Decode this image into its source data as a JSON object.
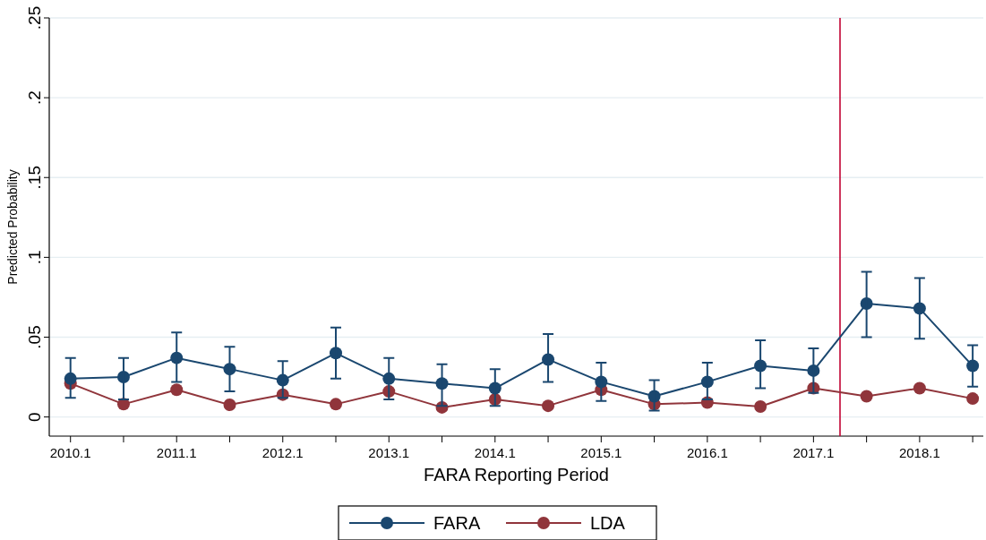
{
  "chart_data": {
    "type": "line",
    "xlabel": "FARA Reporting Period",
    "ylabel": "Predicted Probability",
    "x": [
      2010.1,
      2010.6,
      2011.1,
      2011.6,
      2012.1,
      2012.6,
      2013.1,
      2013.6,
      2014.1,
      2014.6,
      2015.1,
      2015.6,
      2016.1,
      2016.6,
      2017.1,
      2017.6,
      2018.1,
      2018.6
    ],
    "series": [
      {
        "name": "FARA",
        "color": "#1a476f",
        "values": [
          0.024,
          0.025,
          0.037,
          0.03,
          0.023,
          0.04,
          0.024,
          0.021,
          0.018,
          0.036,
          0.022,
          0.013,
          0.022,
          0.032,
          0.029,
          0.071,
          0.068,
          0.032
        ],
        "errors": [
          [
            0.012,
            0.037
          ],
          [
            0.011,
            0.037
          ],
          [
            0.022,
            0.053
          ],
          [
            0.016,
            0.044
          ],
          [
            0.012,
            0.035
          ],
          [
            0.024,
            0.056
          ],
          [
            0.011,
            0.037
          ],
          [
            0.007,
            0.033
          ],
          [
            0.007,
            0.03
          ],
          [
            0.022,
            0.052
          ],
          [
            0.01,
            0.034
          ],
          [
            0.004,
            0.023
          ],
          [
            0.011,
            0.034
          ],
          [
            0.018,
            0.048
          ],
          [
            0.015,
            0.043
          ],
          [
            0.05,
            0.091
          ],
          [
            0.049,
            0.087
          ],
          [
            0.019,
            0.045
          ]
        ]
      },
      {
        "name": "LDA",
        "color": "#90353b",
        "values": [
          0.021,
          0.008,
          0.017,
          0.0076,
          0.014,
          0.008,
          0.016,
          0.006,
          0.011,
          0.007,
          0.017,
          0.008,
          0.009,
          0.0065,
          0.018,
          0.013,
          0.018,
          0.0115
        ]
      }
    ],
    "xlim": [
      2009.9,
      2018.7
    ],
    "xticks": [
      {
        "value": 2010.1,
        "label": "2010.1"
      },
      {
        "value": 2010.6,
        "label": null
      },
      {
        "value": 2011.1,
        "label": "2011.1"
      },
      {
        "value": 2011.6,
        "label": null
      },
      {
        "value": 2012.1,
        "label": "2012.1"
      },
      {
        "value": 2012.6,
        "label": null
      },
      {
        "value": 2013.1,
        "label": "2013.1"
      },
      {
        "value": 2013.6,
        "label": null
      },
      {
        "value": 2014.1,
        "label": "2014.1"
      },
      {
        "value": 2014.6,
        "label": null
      },
      {
        "value": 2015.1,
        "label": "2015.1"
      },
      {
        "value": 2015.6,
        "label": null
      },
      {
        "value": 2016.1,
        "label": "2016.1"
      },
      {
        "value": 2016.6,
        "label": null
      },
      {
        "value": 2017.1,
        "label": "2017.1"
      },
      {
        "value": 2017.6,
        "label": null
      },
      {
        "value": 2018.1,
        "label": "2018.1"
      },
      {
        "value": 2018.6,
        "label": null
      }
    ],
    "ylim": [
      -0.012,
      0.25
    ],
    "yticks": [
      {
        "value": 0,
        "label": "0"
      },
      {
        "value": 0.05,
        "label": ".05"
      },
      {
        "value": 0.1,
        "label": ".1"
      },
      {
        "value": 0.15,
        "label": ".15"
      },
      {
        "value": 0.2,
        "label": ".2"
      },
      {
        "value": 0.25,
        "label": ".25"
      }
    ],
    "ref_lines": [
      {
        "axis": "x",
        "value": 2017.35,
        "color": "#c10534"
      }
    ],
    "grid": "y",
    "legend": "bottom",
    "marker": "circle",
    "line_style": "solid"
  }
}
